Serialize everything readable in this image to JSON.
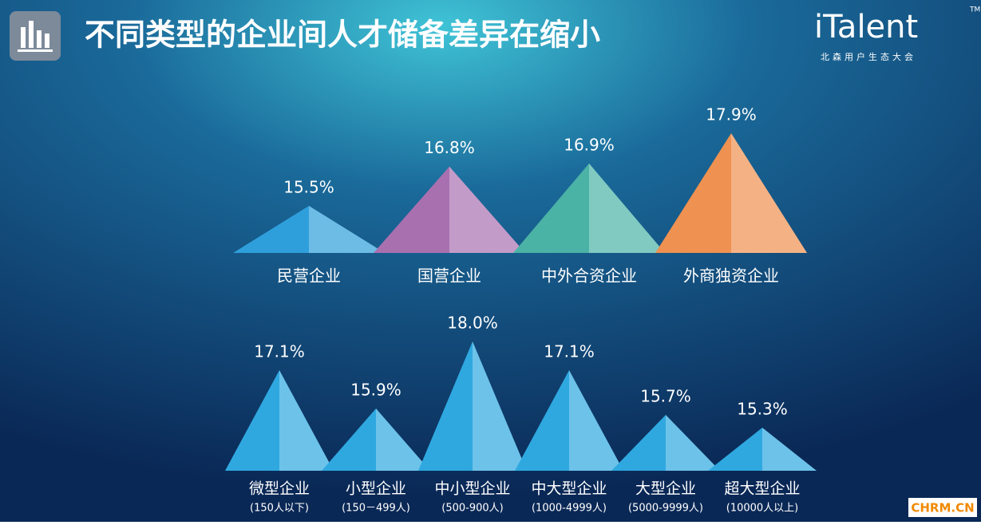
{
  "title": "不同类型的企业间人才储备差异在缩小",
  "logo": {
    "name": "iTalent",
    "tagline": "北森用户生态大会",
    "mark": "TM"
  },
  "watermark": "CHRM.CN",
  "chart_data": [
    {
      "type": "triangle",
      "categories": [
        "民营企业",
        "国营企业",
        "中外合资企业",
        "外商独资企业"
      ],
      "values": [
        15.5,
        16.8,
        16.9,
        17.9
      ],
      "value_labels": [
        "15.5%",
        "16.8%",
        "16.9%",
        "17.9%"
      ],
      "colors": [
        "#2f9fdc",
        "#a970b0",
        "#4bb3a6",
        "#ef9150"
      ]
    },
    {
      "type": "triangle",
      "categories": [
        "微型企业",
        "小型企业",
        "中小型企业",
        "中大型企业",
        "大型企业",
        "超大型企业"
      ],
      "subcategories": [
        "(150人以下)",
        "(150－499人)",
        "(500-900人)",
        "(1000-4999人)",
        "(5000-9999人)",
        "(10000人以上)"
      ],
      "values": [
        17.1,
        15.9,
        18.0,
        17.1,
        15.7,
        15.3
      ],
      "value_labels": [
        "17.1%",
        "15.9%",
        "18.0%",
        "17.1%",
        "15.7%",
        "15.3%"
      ],
      "color": "#2fa8e0"
    }
  ]
}
